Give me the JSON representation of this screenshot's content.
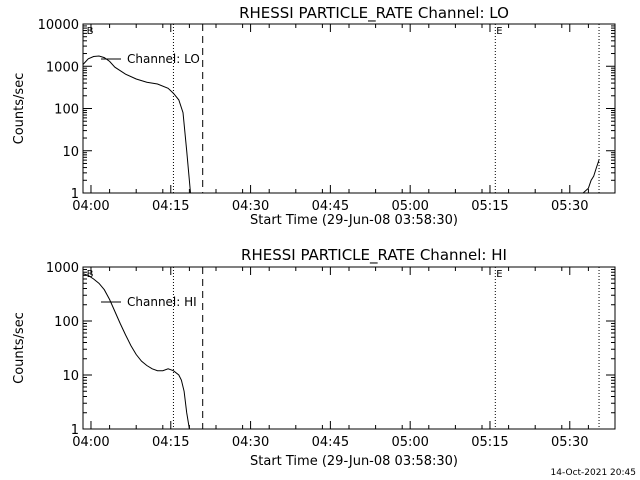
{
  "colors": {
    "background": "#ffffff",
    "foreground": "#000000"
  },
  "footer": {
    "timestamp": "14-Oct-2021 20:45"
  },
  "chart_data": [
    {
      "type": "line",
      "title": "RHESSI PARTICLE_RATE Channel: LO",
      "xlabel": "Start Time (29-Jun-08 03:58:30)",
      "ylabel": "Counts/sec",
      "x_unit": "minutes after 03:58:30",
      "xlim": [
        0,
        100
      ],
      "ylim": [
        1,
        10000
      ],
      "yscale": "log",
      "xtick_values": [
        1.5,
        16.5,
        31.5,
        46.5,
        61.5,
        76.5,
        91.5
      ],
      "xtick_labels": [
        "04:00",
        "04:15",
        "04:30",
        "04:45",
        "05:00",
        "05:15",
        "05:30"
      ],
      "ytick_values": [
        1,
        10,
        100,
        1000,
        10000
      ],
      "ytick_labels": [
        "1",
        "10",
        "100",
        "1000",
        "10000"
      ],
      "grid": false,
      "legend": "top-left",
      "series": [
        {
          "name": "Channel: LO",
          "x": [
            0,
            1,
            2,
            3,
            4,
            5,
            6,
            8,
            10,
            12,
            14,
            16,
            17,
            18,
            18.8,
            19.5,
            20.2
          ],
          "y": [
            1100,
            1500,
            1700,
            1750,
            1600,
            1300,
            950,
            650,
            500,
            420,
            380,
            300,
            230,
            160,
            80,
            10,
            1
          ]
        },
        {
          "name": "",
          "x": [
            94,
            95,
            95.5,
            96,
            96.5,
            97
          ],
          "y": [
            1,
            1.3,
            2,
            2.5,
            4,
            6
          ]
        }
      ],
      "markers": [
        {
          "x": 17,
          "style": "dotted",
          "label": ""
        },
        {
          "x": 22.5,
          "style": "dashed",
          "label": ""
        },
        {
          "x": 77.5,
          "style": "dotted",
          "label": ""
        },
        {
          "x": 97,
          "style": "dotted",
          "label": ""
        }
      ],
      "corner_labels": [
        {
          "x": 0.5,
          "text": "B"
        },
        {
          "x": 77.5,
          "text": "E"
        }
      ]
    },
    {
      "type": "line",
      "title": "RHESSI PARTICLE_RATE Channel: HI",
      "xlabel": "Start Time (29-Jun-08 03:58:30)",
      "ylabel": "Counts/sec",
      "x_unit": "minutes after 03:58:30",
      "xlim": [
        0,
        100
      ],
      "ylim": [
        1,
        1000
      ],
      "yscale": "log",
      "xtick_values": [
        1.5,
        16.5,
        31.5,
        46.5,
        61.5,
        76.5,
        91.5
      ],
      "xtick_labels": [
        "04:00",
        "04:15",
        "04:30",
        "04:45",
        "05:00",
        "05:15",
        "05:30"
      ],
      "ytick_values": [
        1,
        10,
        100,
        1000
      ],
      "ytick_labels": [
        "1",
        "10",
        "100",
        "1000"
      ],
      "grid": false,
      "legend": "top-left",
      "series": [
        {
          "name": "Channel: HI",
          "x": [
            0,
            1,
            2,
            3,
            4,
            5,
            6,
            7,
            8,
            9,
            10,
            11,
            12,
            13,
            14,
            15,
            16,
            17,
            18,
            18.5,
            19,
            19.5,
            20
          ],
          "y": [
            750,
            700,
            600,
            500,
            380,
            250,
            150,
            90,
            55,
            35,
            24,
            18,
            15,
            13,
            12,
            12,
            13,
            12,
            10,
            8,
            5,
            2,
            1
          ]
        }
      ],
      "markers": [
        {
          "x": 17,
          "style": "dotted",
          "label": ""
        },
        {
          "x": 22.5,
          "style": "dashed",
          "label": ""
        },
        {
          "x": 77.5,
          "style": "dotted",
          "label": ""
        },
        {
          "x": 97,
          "style": "dotted",
          "label": ""
        }
      ],
      "corner_labels": [
        {
          "x": 0.5,
          "text": "B"
        },
        {
          "x": 77.5,
          "text": "E"
        }
      ]
    }
  ]
}
